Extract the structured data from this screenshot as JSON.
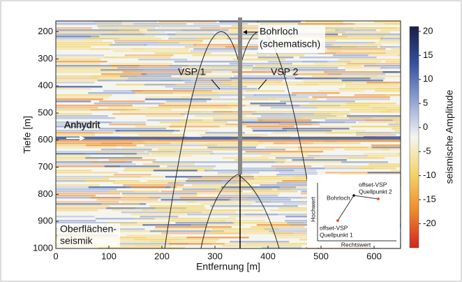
{
  "chart_data": {
    "type": "heatmap",
    "x_label": "Entfernung [m]",
    "y_label": "Tiefe [m]",
    "colorbar_label": "seismische Amplitude",
    "xlim": [
      0,
      650
    ],
    "xticks": [
      0,
      100,
      200,
      300,
      400,
      500,
      600
    ],
    "ylim": [
      160,
      1000
    ],
    "yticks": [
      200,
      300,
      400,
      500,
      600,
      700,
      800,
      900,
      1000
    ],
    "y_inverted": true,
    "clim": [
      -25,
      21
    ],
    "cticks": [
      -20,
      -15,
      -10,
      -5,
      0,
      5,
      10,
      15,
      20
    ],
    "colormap": [
      "#1b1d45",
      "#34509e",
      "#8fa3d2",
      "#f5f5f0",
      "#f3d468",
      "#ee8a2a",
      "#d0251f"
    ],
    "annotations": [
      "Bohrloch",
      "(schematisch)",
      "VSP 1",
      "VSP 2",
      "Anhydrit",
      "Oberflächen-",
      "seismik"
    ],
    "inset": [
      "Hochwert",
      "Bohrloch",
      "offset-VSP",
      "Quellpunkt 2",
      "offset-VSP",
      "Quellpunkt 1",
      "Rechtswert"
    ]
  }
}
